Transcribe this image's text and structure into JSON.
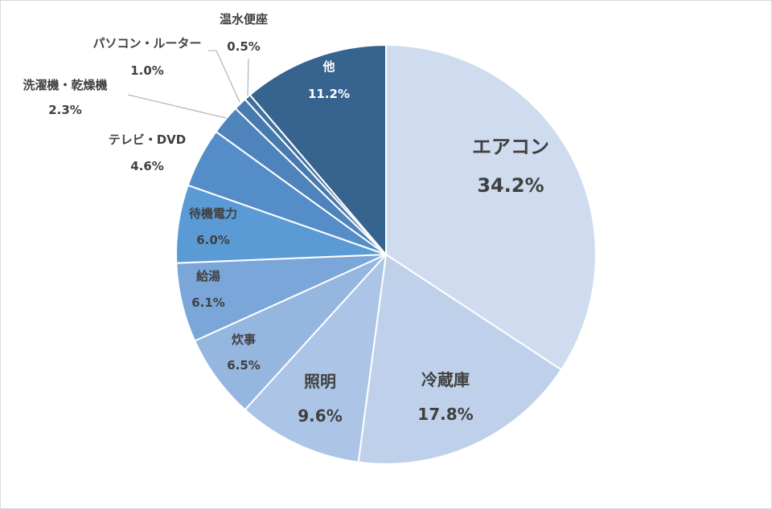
{
  "chart_data": {
    "type": "pie",
    "start_angle_deg": 0,
    "direction": "clockwise",
    "slices": [
      {
        "label": "エアコン",
        "value": 34.2,
        "value_label": "34.2%",
        "color": "#cfdbee",
        "text_color": "#404040"
      },
      {
        "label": "冷蔵庫",
        "value": 17.8,
        "value_label": "17.8%",
        "color": "#bfd1ea",
        "text_color": "#404040"
      },
      {
        "label": "照明",
        "value": 9.6,
        "value_label": "9.6%",
        "color": "#acc4e6",
        "text_color": "#404040"
      },
      {
        "label": "炊事",
        "value": 6.5,
        "value_label": "6.5%",
        "color": "#95b6df",
        "text_color": "#404040"
      },
      {
        "label": "給湯",
        "value": 6.1,
        "value_label": "6.1%",
        "color": "#7ba6d9",
        "text_color": "#404040"
      },
      {
        "label": "待機電力",
        "value": 6.0,
        "value_label": "6.0%",
        "color": "#5b9bd5",
        "text_color": "#404040"
      },
      {
        "label": "テレビ・DVD",
        "value": 4.6,
        "value_label": "4.6%",
        "color": "#548dc8",
        "text_color": "#404040"
      },
      {
        "label": "洗濯機・乾燥機",
        "value": 2.3,
        "value_label": "2.3%",
        "color": "#4e84bb",
        "text_color": "#404040"
      },
      {
        "label": "パソコン・ルーター",
        "value": 1.0,
        "value_label": "1.0%",
        "color": "#477aaf",
        "text_color": "#404040"
      },
      {
        "label": "温水便座",
        "value": 0.5,
        "value_label": "0.5%",
        "color": "#41709f",
        "text_color": "#404040"
      },
      {
        "label": "他",
        "value": 11.2,
        "value_label": "11.2%",
        "color": "#36648f",
        "text_color": "#ffffff"
      }
    ],
    "legend": "none"
  }
}
